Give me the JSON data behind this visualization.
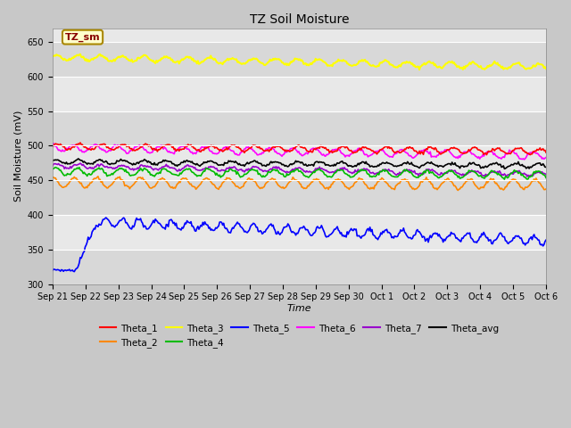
{
  "title": "TZ Soil Moisture",
  "xlabel": "Time",
  "ylabel": "Soil Moisture (mV)",
  "ylim": [
    300,
    670
  ],
  "yticks": [
    300,
    350,
    400,
    450,
    500,
    550,
    600,
    650
  ],
  "fig_bg": "#c8c8c8",
  "plot_bg": "#e8e8e8",
  "legend_box_color": "#ffffcc",
  "legend_box_edge": "#aa8800",
  "annotation_text": "TZ_sm",
  "annotation_color": "#880000",
  "series": {
    "Theta_1": {
      "color": "#ff0000",
      "base": 499,
      "amp": 4,
      "freq": 1.5,
      "trend": -7,
      "phase": 0.0
    },
    "Theta_2": {
      "color": "#ff8800",
      "base": 447,
      "amp": 7,
      "freq": 1.5,
      "trend": -3,
      "phase": 1.5
    },
    "Theta_3": {
      "color": "#ffff00",
      "base": 628,
      "amp": 4,
      "freq": 1.5,
      "trend": -14,
      "phase": 0.5
    },
    "Theta_4": {
      "color": "#00bb00",
      "base": 463,
      "amp": 5,
      "freq": 1.5,
      "trend": -5,
      "phase": 0.8
    },
    "Theta_5": {
      "color": "#0000ff",
      "base": 380,
      "amp": 6,
      "freq": 2.0,
      "trend": -20,
      "phase": 0.0,
      "special": true
    },
    "Theta_6": {
      "color": "#ff00ff",
      "base": 497,
      "amp": 5,
      "freq": 1.5,
      "trend": -11,
      "phase": 2.0
    },
    "Theta_7": {
      "color": "#9900cc",
      "base": 471,
      "amp": 3,
      "freq": 1.5,
      "trend": -12,
      "phase": 0.3
    },
    "Theta_avg": {
      "color": "#000000",
      "base": 477,
      "amp": 3,
      "freq": 1.5,
      "trend": -6,
      "phase": 0.5
    }
  },
  "num_points": 500,
  "xtick_labels": [
    "Sep 21",
    "Sep 22",
    "Sep 23",
    "Sep 24",
    "Sep 25",
    "Sep 26",
    "Sep 27",
    "Sep 28",
    "Sep 29",
    "Sep 30",
    "Oct 1",
    "Oct 2",
    "Oct 3",
    "Oct 4",
    "Oct 5",
    "Oct 6"
  ]
}
